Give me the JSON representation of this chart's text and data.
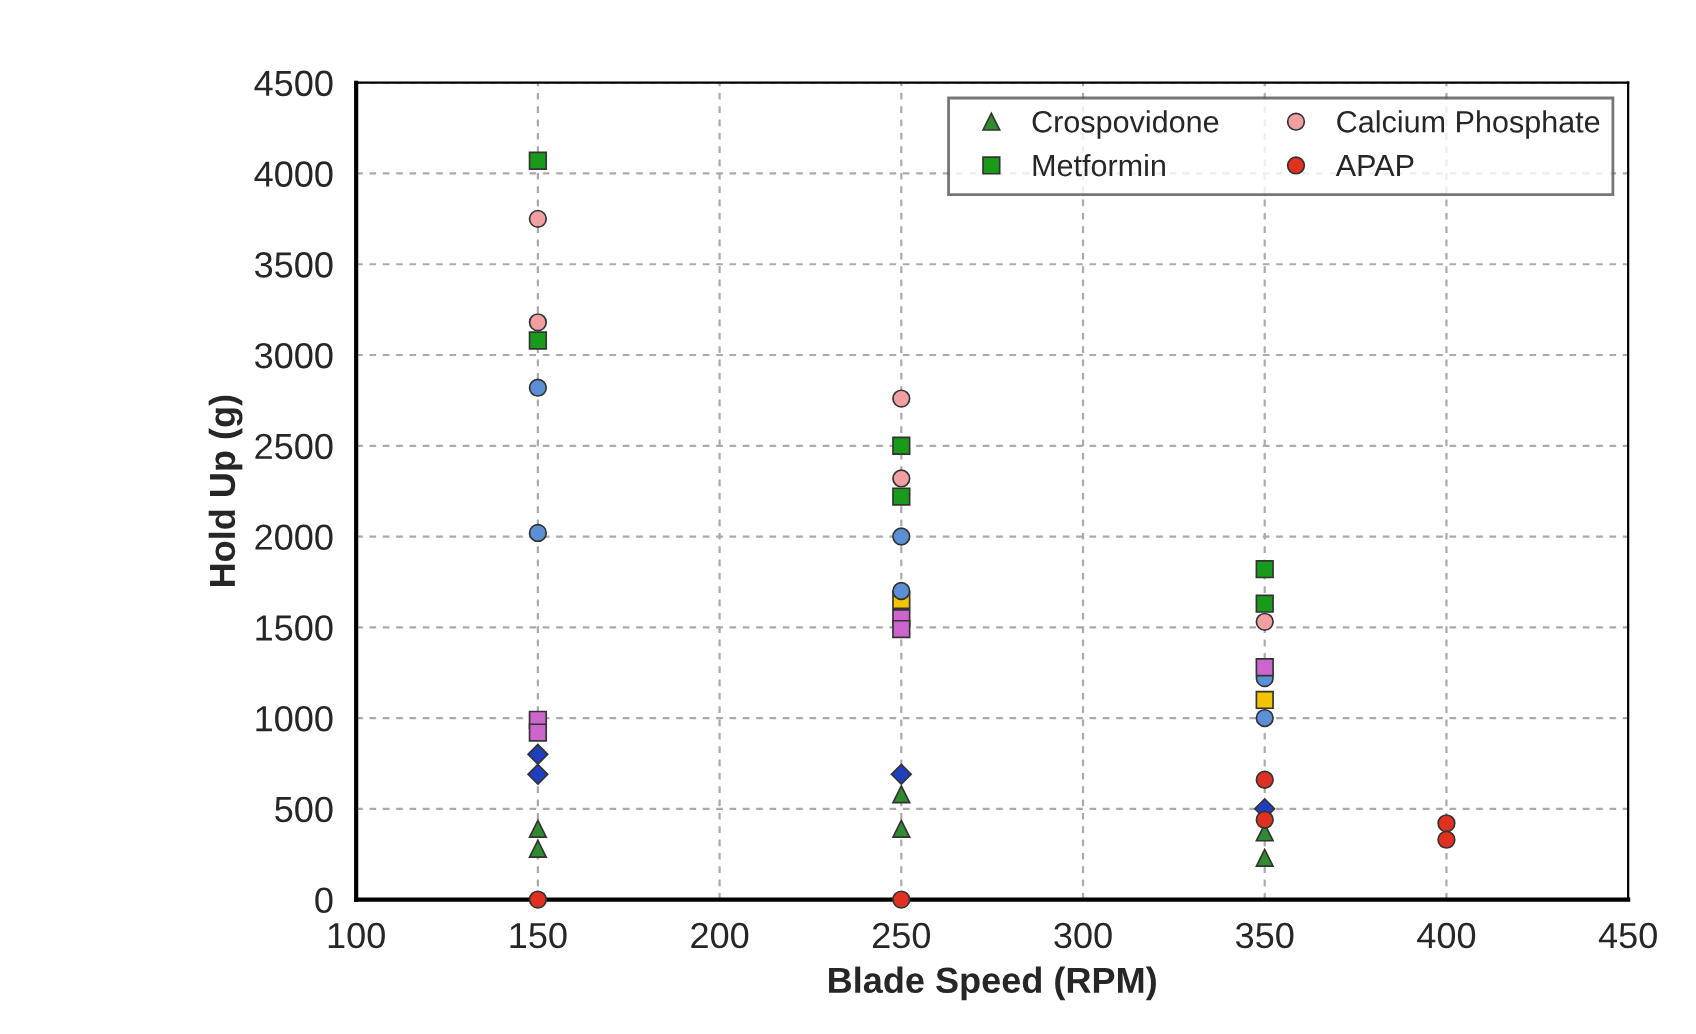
{
  "chart_data": {
    "type": "scatter",
    "xlabel": "Blade Speed (RPM)",
    "ylabel": "Hold Up (g)",
    "xlim": [
      100,
      450
    ],
    "xticks": [
      100,
      150,
      200,
      250,
      300,
      350,
      400,
      450
    ],
    "ylim": [
      0,
      4500
    ],
    "yticks": [
      0,
      500,
      1000,
      1500,
      2000,
      2500,
      3000,
      3500,
      4000,
      4500
    ],
    "grid": true,
    "legend": "top right",
    "series": [
      {
        "color": "#1f3fbf",
        "marker": "diamond",
        "x": [
          150,
          150,
          250,
          350
        ],
        "values": [
          800,
          690,
          690,
          500
        ]
      },
      {
        "color": "#f5c400",
        "marker": "square",
        "x": [
          250,
          350
        ],
        "values": [
          1650,
          1100
        ]
      },
      {
        "name": "Crospovidone",
        "color": "#2e8b2e",
        "marker": "triangle",
        "x": [
          150,
          150,
          250,
          250,
          350,
          350
        ],
        "values": [
          390,
          280,
          580,
          390,
          370,
          230
        ]
      },
      {
        "color": "#5b8fd6",
        "marker": "circle",
        "x": [
          150,
          150,
          250,
          250,
          350,
          350
        ],
        "values": [
          2820,
          2020,
          2000,
          1700,
          1220,
          1000
        ]
      },
      {
        "name": "Metformin",
        "color": "#1a9a1a",
        "marker": "square",
        "x": [
          150,
          150,
          250,
          250,
          350,
          350
        ],
        "values": [
          4070,
          3080,
          2500,
          2220,
          1820,
          1630
        ]
      },
      {
        "name": "Calcium Phosphate",
        "color": "#f0a0a0",
        "marker": "circle",
        "x": [
          150,
          150,
          250,
          250,
          350
        ],
        "values": [
          3750,
          3180,
          2760,
          2320,
          1530
        ]
      },
      {
        "color": "#cc66cc",
        "marker": "square",
        "x": [
          150,
          150,
          250,
          250,
          350
        ],
        "values": [
          990,
          920,
          1550,
          1490,
          1280
        ]
      },
      {
        "name": "APAP",
        "color": "#e03020",
        "marker": "circle",
        "x": [
          150,
          250,
          350,
          350,
          400,
          400
        ],
        "values": [
          0,
          0,
          660,
          440,
          420,
          330
        ]
      }
    ]
  }
}
